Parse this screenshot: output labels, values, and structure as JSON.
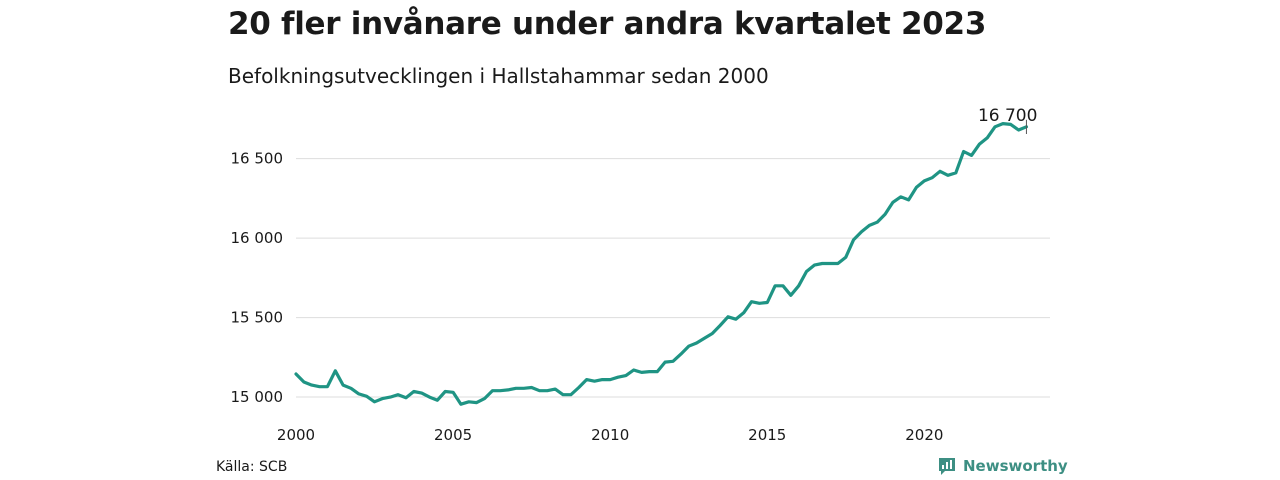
{
  "header": {
    "title": "20 fler invånare under andra kvartalet 2023",
    "subtitle": "Befolkningsutvecklingen i Hallstahammar sedan 2000"
  },
  "footer": {
    "source": "Källa: SCB",
    "brand": "Newsworthy"
  },
  "colors": {
    "line": "#1f9484",
    "grid": "#dddddd",
    "brand": "#3d8f83"
  },
  "chart_data": {
    "type": "line",
    "title": "20 fler invånare under andra kvartalet 2023",
    "subtitle": "Befolkningsutvecklingen i Hallstahammar sedan 2000",
    "xlabel": "",
    "ylabel": "",
    "x_ticks": [
      "2000",
      "2005",
      "2010",
      "2015",
      "2020"
    ],
    "y_ticks": [
      "15 000",
      "15 500",
      "16 000",
      "16 500"
    ],
    "y_tick_values": [
      15000,
      15500,
      16000,
      16500
    ],
    "xlim": [
      2000,
      2024
    ],
    "ylim": [
      14950,
      16680
    ],
    "grid": "horizontal",
    "legend": "none",
    "annotation": {
      "text": "16 700",
      "x": 2023.25,
      "y": 16700
    },
    "series": [
      {
        "x": [
          2000.0,
          2000.25,
          2000.5,
          2000.75,
          2001.0,
          2001.25,
          2001.5,
          2001.75,
          2002.0,
          2002.25,
          2002.5,
          2002.75,
          2003.0,
          2003.25,
          2003.5,
          2003.75,
          2004.0,
          2004.25,
          2004.5,
          2004.75,
          2005.0,
          2005.25,
          2005.5,
          2005.75,
          2006.0,
          2006.25,
          2006.5,
          2006.75,
          2007.0,
          2007.25,
          2007.5,
          2007.75,
          2008.0,
          2008.25,
          2008.5,
          2008.75,
          2009.0,
          2009.25,
          2009.5,
          2009.75,
          2010.0,
          2010.25,
          2010.5,
          2010.75,
          2011.0,
          2011.25,
          2011.5,
          2011.75,
          2012.0,
          2012.25,
          2012.5,
          2012.75,
          2013.0,
          2013.25,
          2013.5,
          2013.75,
          2014.0,
          2014.25,
          2014.5,
          2014.75,
          2015.0,
          2015.25,
          2015.5,
          2015.75,
          2016.0,
          2016.25,
          2016.5,
          2016.75,
          2017.0,
          2017.25,
          2017.5,
          2017.75,
          2018.0,
          2018.25,
          2018.5,
          2018.75,
          2019.0,
          2019.25,
          2019.5,
          2019.75,
          2020.0,
          2020.25,
          2020.5,
          2020.75,
          2021.0,
          2021.25,
          2021.5,
          2021.75,
          2022.0,
          2022.25,
          2022.5,
          2022.75,
          2023.0,
          2023.25
        ],
        "values": [
          15145,
          15095,
          15075,
          15065,
          15065,
          15165,
          15075,
          15055,
          15020,
          15005,
          14970,
          14990,
          15000,
          15015,
          14995,
          15035,
          15025,
          15000,
          14980,
          15035,
          15030,
          14955,
          14970,
          14965,
          14990,
          15040,
          15040,
          15045,
          15055,
          15055,
          15060,
          15040,
          15040,
          15050,
          15015,
          15015,
          15060,
          15110,
          15100,
          15110,
          15110,
          15125,
          15135,
          15170,
          15155,
          15160,
          15160,
          15220,
          15225,
          15270,
          15320,
          15340,
          15370,
          15400,
          15450,
          15505,
          15490,
          15530,
          15600,
          15590,
          15595,
          15700,
          15700,
          15640,
          15700,
          15790,
          15830,
          15840,
          15840,
          15840,
          15880,
          15990,
          16040,
          16080,
          16100,
          16150,
          16225,
          16260,
          16240,
          16320,
          16360,
          16380,
          16420,
          16395,
          16410,
          16545,
          16520,
          16590,
          16630,
          16700,
          16720,
          16715,
          16680,
          16700
        ]
      }
    ]
  }
}
